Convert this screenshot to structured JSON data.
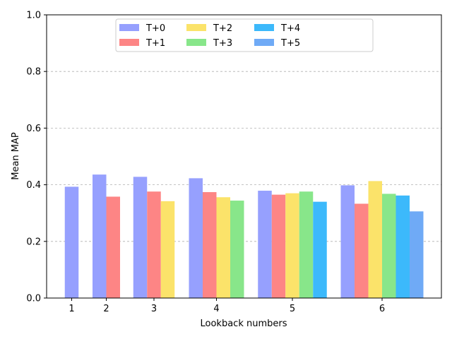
{
  "chart_data": {
    "type": "bar",
    "xlabel": "Lookback numbers",
    "ylabel": "Mean MAP",
    "ylim": [
      0,
      1.0
    ],
    "yticks": [
      "0.0",
      "0.2",
      "0.4",
      "0.6",
      "0.8",
      "1.0"
    ],
    "grid": "horizontal dashed",
    "legend_position": "top-center",
    "groups": [
      {
        "label": "1",
        "values": [
          0.393
        ]
      },
      {
        "label": "2",
        "values": [
          0.436,
          0.358
        ]
      },
      {
        "label": "3",
        "values": [
          0.428,
          0.376,
          0.342
        ]
      },
      {
        "label": "4",
        "values": [
          0.423,
          0.374,
          0.356,
          0.344
        ]
      },
      {
        "label": "5",
        "values": [
          0.379,
          0.365,
          0.37,
          0.376,
          0.34
        ]
      },
      {
        "label": "6",
        "values": [
          0.398,
          0.333,
          0.413,
          0.368,
          0.362,
          0.306
        ]
      }
    ],
    "series": [
      {
        "name": "T+0",
        "color": "#96a0fe"
      },
      {
        "name": "T+1",
        "color": "#fd8585"
      },
      {
        "name": "T+2",
        "color": "#fbe36a"
      },
      {
        "name": "T+3",
        "color": "#88e68a"
      },
      {
        "name": "T+4",
        "color": "#3cb9fb"
      },
      {
        "name": "T+5",
        "color": "#6faaf6"
      }
    ]
  }
}
